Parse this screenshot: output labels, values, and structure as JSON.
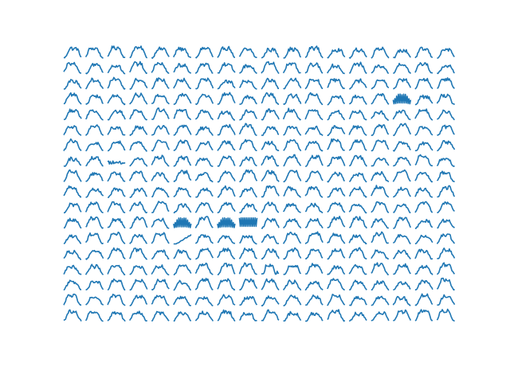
{
  "chart_data": {
    "type": "line",
    "layout": "small-multiples",
    "grid_rows": 18,
    "grid_cols": 18,
    "axes_visible": false,
    "grid": false,
    "legend": "none",
    "line_color": "#1f77b4",
    "x": [
      0,
      1,
      2,
      3,
      4,
      5,
      6,
      7,
      8,
      9,
      10,
      11,
      12,
      13,
      14,
      15,
      16,
      17,
      18,
      19,
      20
    ],
    "base_profile": [
      0.05,
      0.12,
      0.25,
      0.45,
      0.65,
      0.82,
      0.92,
      0.97,
      0.95,
      0.9,
      0.85,
      0.88,
      0.93,
      0.95,
      0.9,
      0.8,
      0.62,
      0.42,
      0.24,
      0.12,
      0.05
    ],
    "ylim": [
      0,
      1.05
    ],
    "noise_seed": 1234,
    "noise_amplitude": 0.12,
    "special_panels": [
      {
        "row": 3,
        "col": 15,
        "shape": "oscillating"
      },
      {
        "row": 11,
        "col": 5,
        "shape": "oscillating"
      },
      {
        "row": 11,
        "col": 7,
        "shape": "oscillating"
      },
      {
        "row": 11,
        "col": 8,
        "shape": "dense"
      },
      {
        "row": 12,
        "col": 5,
        "shape": "rising"
      },
      {
        "row": 14,
        "col": 9,
        "shape": "step"
      },
      {
        "row": 7,
        "col": 2,
        "shape": "flat"
      }
    ]
  }
}
